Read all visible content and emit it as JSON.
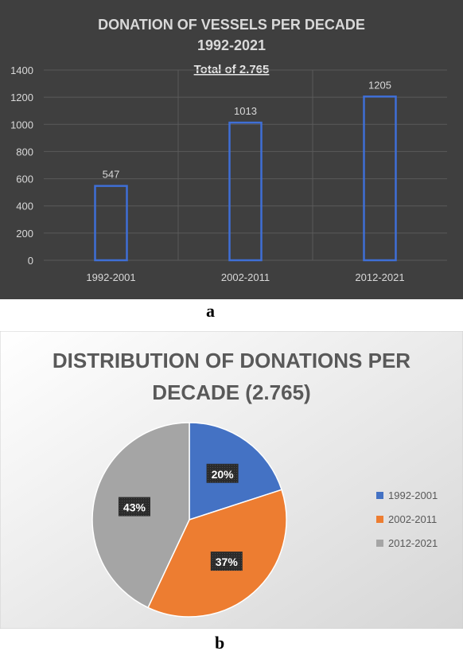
{
  "chart_data": [
    {
      "type": "bar",
      "title": "DONATION OF VESSELS PER DECADE",
      "subtitle": "1992-2021",
      "annotation": "Total of 2.765",
      "categories": [
        "1992-2001",
        "2002-2011",
        "2012-2021"
      ],
      "values": [
        547,
        1013,
        1205
      ],
      "data_labels": [
        "547",
        "1013",
        "1205"
      ],
      "ylim": [
        0,
        1400
      ],
      "yticks": [
        0,
        200,
        400,
        600,
        800,
        1000,
        1200,
        1400
      ],
      "ytick_labels": [
        "0",
        "200",
        "400",
        "600",
        "800",
        "1000",
        "1200",
        "1400"
      ],
      "xlabel": "",
      "ylabel": "",
      "grid": true,
      "colors": {
        "background": "#3f3f3f",
        "bar_outline": "#3f6fd6",
        "text": "#d9d9d9",
        "grid": "#5a5a5a"
      }
    },
    {
      "type": "pie",
      "title_lines": [
        "DISTRIBUTION OF DONATIONS PER",
        "DECADE (2.765)"
      ],
      "categories": [
        "1992-2001",
        "2002-2011",
        "2012-2021"
      ],
      "values": [
        20,
        37,
        43
      ],
      "data_labels": [
        "20%",
        "37%",
        "43%"
      ],
      "legend": {
        "position": "right",
        "entries": [
          "1992-2001",
          "2002-2011",
          "2012-2021"
        ]
      },
      "colors": [
        "#4472c4",
        "#ed7d31",
        "#a5a5a5"
      ]
    }
  ],
  "panel_labels": {
    "a": "a",
    "b": "b"
  }
}
